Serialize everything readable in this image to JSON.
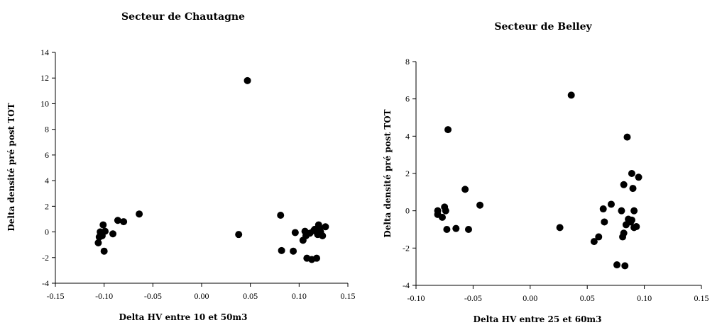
{
  "chart_data": [
    {
      "type": "scatter",
      "title": "Secteur de Chautagne",
      "xlabel": "Delta HV entre 10 et 50m3",
      "ylabel": "Delta densité pré post TOT",
      "xlim": [
        -0.15,
        0.15
      ],
      "ylim": [
        -4,
        14
      ],
      "xticks": [
        "-0.15",
        "-0.10",
        "-0.05",
        "0.00",
        "0.05",
        "0.10",
        "0.15"
      ],
      "yticks": [
        "-4",
        "-2",
        "0",
        "2",
        "4",
        "6",
        "8",
        "10",
        "12",
        "14"
      ],
      "xtick_values": [
        -0.15,
        -0.1,
        -0.05,
        0.0,
        0.05,
        0.1,
        0.15
      ],
      "ytick_values": [
        -4,
        -2,
        0,
        2,
        4,
        6,
        8,
        10,
        12,
        14
      ],
      "grid": false,
      "legend": "none",
      "marker_color": "#000000",
      "points": [
        [
          -0.106,
          -0.85
        ],
        [
          -0.105,
          -0.4
        ],
        [
          -0.104,
          0.0
        ],
        [
          -0.102,
          -0.3
        ],
        [
          -0.101,
          0.55
        ],
        [
          -0.1,
          -1.5
        ],
        [
          -0.099,
          0.05
        ],
        [
          -0.091,
          -0.15
        ],
        [
          -0.086,
          0.9
        ],
        [
          -0.08,
          0.8
        ],
        [
          -0.064,
          1.4
        ],
        [
          0.038,
          -0.2
        ],
        [
          0.047,
          11.8
        ],
        [
          0.081,
          1.3
        ],
        [
          0.082,
          -1.45
        ],
        [
          0.094,
          -1.5
        ],
        [
          0.096,
          -0.05
        ],
        [
          0.104,
          -0.65
        ],
        [
          0.106,
          0.05
        ],
        [
          0.107,
          -0.3
        ],
        [
          0.108,
          -2.05
        ],
        [
          0.111,
          -0.1
        ],
        [
          0.113,
          -2.15
        ],
        [
          0.115,
          0.1
        ],
        [
          0.116,
          0.2
        ],
        [
          0.118,
          -2.05
        ],
        [
          0.119,
          -0.2
        ],
        [
          0.12,
          0.55
        ],
        [
          0.121,
          0.3
        ],
        [
          0.122,
          0.0
        ],
        [
          0.124,
          -0.3
        ],
        [
          0.127,
          0.4
        ]
      ]
    },
    {
      "type": "scatter",
      "title": "Secteur de Belley",
      "xlabel": "Delta HV entre 25 et 60m3",
      "ylabel": "Delta densité pré post TOT",
      "xlim": [
        -0.1,
        0.15
      ],
      "ylim": [
        -4,
        8
      ],
      "xticks": [
        "-0.10",
        "-0.05",
        "0.00",
        "0.05",
        "0.10",
        "0.15"
      ],
      "yticks": [
        "-4",
        "-2",
        "0",
        "2",
        "4",
        "6",
        "8"
      ],
      "xtick_values": [
        -0.1,
        -0.05,
        0.0,
        0.05,
        0.1,
        0.15
      ],
      "ytick_values": [
        -4,
        -2,
        0,
        2,
        4,
        6,
        8
      ],
      "grid": false,
      "legend": "none",
      "marker_color": "#000000",
      "points": [
        [
          -0.081,
          0.0
        ],
        [
          -0.081,
          -0.2
        ],
        [
          -0.077,
          -0.35
        ],
        [
          -0.075,
          0.2
        ],
        [
          -0.074,
          0.0
        ],
        [
          -0.073,
          -1.0
        ],
        [
          -0.072,
          4.35
        ],
        [
          -0.065,
          -0.95
        ],
        [
          -0.057,
          1.15
        ],
        [
          -0.054,
          -1.0
        ],
        [
          -0.044,
          0.3
        ],
        [
          0.026,
          -0.9
        ],
        [
          0.036,
          6.2
        ],
        [
          0.056,
          -1.65
        ],
        [
          0.06,
          -1.4
        ],
        [
          0.064,
          0.1
        ],
        [
          0.065,
          -0.6
        ],
        [
          0.071,
          0.35
        ],
        [
          0.076,
          -2.9
        ],
        [
          0.08,
          0.0
        ],
        [
          0.081,
          -1.4
        ],
        [
          0.082,
          -1.2
        ],
        [
          0.082,
          1.4
        ],
        [
          0.083,
          -2.95
        ],
        [
          0.084,
          -0.75
        ],
        [
          0.085,
          3.95
        ],
        [
          0.086,
          -0.45
        ],
        [
          0.088,
          -0.6
        ],
        [
          0.089,
          -0.5
        ],
        [
          0.089,
          2.0
        ],
        [
          0.09,
          1.2
        ],
        [
          0.091,
          -0.9
        ],
        [
          0.091,
          0.0
        ],
        [
          0.093,
          -0.85
        ],
        [
          0.095,
          1.8
        ]
      ]
    }
  ]
}
